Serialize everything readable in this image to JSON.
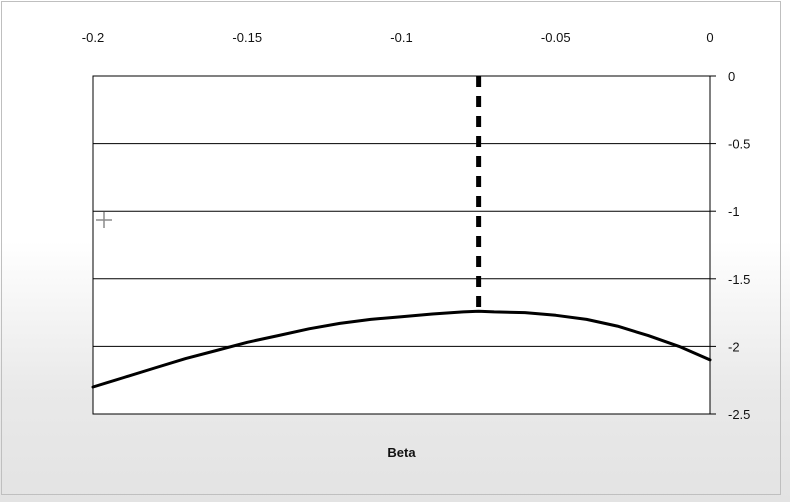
{
  "chart_data": {
    "type": "line",
    "title": "",
    "xlabel": "Beta",
    "ylabel": "",
    "xlim": [
      -0.2,
      0
    ],
    "ylim": [
      -2.5,
      0
    ],
    "x_ticks": [
      "-0.2",
      "-0.15",
      "-0.1",
      "-0.05",
      "0"
    ],
    "x_tick_values": [
      -0.2,
      -0.15,
      -0.1,
      -0.05,
      0
    ],
    "y_ticks": [
      "0",
      "-0.5",
      "-1",
      "-1.5",
      "-2",
      "-2.5"
    ],
    "y_tick_values": [
      0,
      -0.5,
      -1,
      -1.5,
      -2,
      -2.5
    ],
    "x_axis_position": "top",
    "y_axis_position": "right",
    "grid": true,
    "series": [
      {
        "x": [
          -0.2,
          -0.19,
          -0.18,
          -0.17,
          -0.16,
          -0.15,
          -0.14,
          -0.13,
          -0.12,
          -0.11,
          -0.1,
          -0.09,
          -0.08,
          -0.075,
          -0.07,
          -0.06,
          -0.05,
          -0.04,
          -0.03,
          -0.02,
          -0.01,
          0
        ],
        "y": [
          -2.3,
          -2.23,
          -2.16,
          -2.09,
          -2.03,
          -1.97,
          -1.92,
          -1.87,
          -1.83,
          -1.8,
          -1.78,
          -1.76,
          -1.745,
          -1.74,
          -1.745,
          -1.75,
          -1.77,
          -1.8,
          -1.85,
          -1.92,
          -2.0,
          -2.1
        ],
        "color": "#000000",
        "style": "solid"
      }
    ],
    "reference_line": {
      "orientation": "vertical",
      "x": -0.075,
      "color": "#000000",
      "style": "dashed"
    }
  },
  "cursor_icon": "crosshair-icon"
}
